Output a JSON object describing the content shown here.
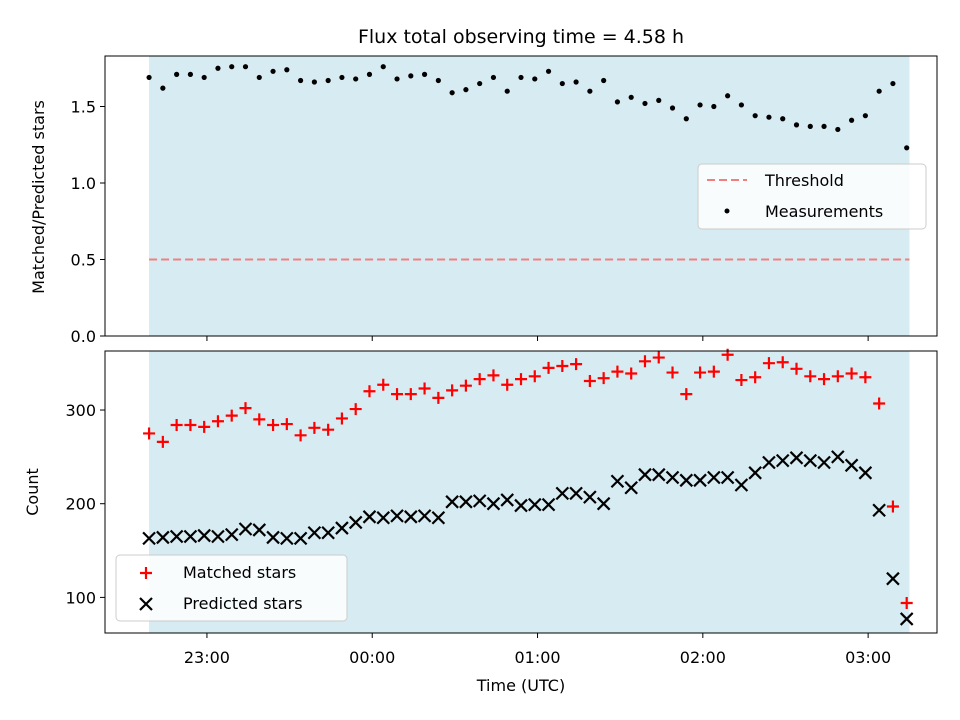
{
  "chart_data": [
    {
      "type": "scatter",
      "title": "Flux total observing time = 4.58 h",
      "xlabel": "",
      "ylabel": "Matched/Predicted stars",
      "ylim": [
        0,
        1.83
      ],
      "yticks": [
        "0.0",
        "0.5",
        "1.0",
        "1.5"
      ],
      "shaded_interval": [
        "22:39",
        "03:15"
      ],
      "threshold": 0.5,
      "legend": {
        "position": "center-right",
        "entries": [
          "Threshold",
          "Measurements"
        ]
      },
      "colors": {
        "threshold": "#f08080",
        "points": "#000000",
        "shade": "#add8e6"
      },
      "series": [
        {
          "name": "Measurements",
          "x": [
            "22:39",
            "22:44",
            "22:49",
            "22:54",
            "22:59",
            "23:04",
            "23:09",
            "23:14",
            "23:19",
            "23:24",
            "23:29",
            "23:34",
            "23:39",
            "23:44",
            "23:49",
            "23:54",
            "23:59",
            "00:04",
            "00:09",
            "00:14",
            "00:19",
            "00:24",
            "00:29",
            "00:34",
            "00:39",
            "00:44",
            "00:49",
            "00:54",
            "00:59",
            "01:04",
            "01:09",
            "01:14",
            "01:19",
            "01:24",
            "01:29",
            "01:34",
            "01:39",
            "01:44",
            "01:49",
            "01:54",
            "01:59",
            "02:04",
            "02:09",
            "02:14",
            "02:19",
            "02:24",
            "02:29",
            "02:34",
            "02:39",
            "02:44",
            "02:49",
            "02:54",
            "02:59",
            "03:04",
            "03:09",
            "03:14"
          ],
          "y": [
            1.69,
            1.62,
            1.71,
            1.71,
            1.69,
            1.75,
            1.76,
            1.76,
            1.69,
            1.73,
            1.74,
            1.67,
            1.66,
            1.67,
            1.69,
            1.68,
            1.71,
            1.76,
            1.68,
            1.7,
            1.71,
            1.67,
            1.59,
            1.61,
            1.65,
            1.69,
            1.6,
            1.69,
            1.68,
            1.73,
            1.65,
            1.66,
            1.6,
            1.67,
            1.53,
            1.56,
            1.52,
            1.54,
            1.49,
            1.42,
            1.51,
            1.5,
            1.57,
            1.51,
            1.44,
            1.43,
            1.42,
            1.38,
            1.37,
            1.37,
            1.35,
            1.41,
            1.44,
            1.6,
            1.65,
            1.23
          ]
        }
      ]
    },
    {
      "type": "scatter",
      "xlabel": "Time (UTC)",
      "ylabel": "Count",
      "ylim": [
        62,
        363
      ],
      "yticks": [
        "100",
        "200",
        "300"
      ],
      "xticks": [
        "23:00",
        "00:00",
        "01:00",
        "02:00",
        "03:00"
      ],
      "legend": {
        "position": "bottom-left",
        "entries": [
          "Matched stars",
          "Predicted stars"
        ]
      },
      "colors": {
        "matched": "#ff0000",
        "predicted": "#000000"
      },
      "series": [
        {
          "name": "Matched stars",
          "x": [
            "22:39",
            "22:44",
            "22:49",
            "22:54",
            "22:59",
            "23:04",
            "23:09",
            "23:14",
            "23:19",
            "23:24",
            "23:29",
            "23:34",
            "23:39",
            "23:44",
            "23:49",
            "23:54",
            "23:59",
            "00:04",
            "00:09",
            "00:14",
            "00:19",
            "00:24",
            "00:29",
            "00:34",
            "00:39",
            "00:44",
            "00:49",
            "00:54",
            "00:59",
            "01:04",
            "01:09",
            "01:14",
            "01:19",
            "01:24",
            "01:29",
            "01:34",
            "01:39",
            "01:44",
            "01:49",
            "01:54",
            "01:59",
            "02:04",
            "02:09",
            "02:14",
            "02:19",
            "02:24",
            "02:29",
            "02:34",
            "02:39",
            "02:44",
            "02:49",
            "02:54",
            "02:59",
            "03:04",
            "03:09",
            "03:14"
          ],
          "y": [
            275,
            266,
            284,
            284,
            282,
            288,
            294,
            302,
            290,
            284,
            285,
            273,
            281,
            279,
            291,
            301,
            320,
            327,
            317,
            317,
            323,
            313,
            321,
            326,
            333,
            337,
            327,
            333,
            336,
            345,
            347,
            349,
            331,
            334,
            341,
            339,
            352,
            356,
            340,
            317,
            340,
            341,
            359,
            332,
            335,
            350,
            351,
            344,
            336,
            333,
            336,
            339,
            335,
            307,
            197,
            94
          ]
        },
        {
          "name": "Predicted stars",
          "x": [
            "22:39",
            "22:44",
            "22:49",
            "22:54",
            "22:59",
            "23:04",
            "23:09",
            "23:14",
            "23:19",
            "23:24",
            "23:29",
            "23:34",
            "23:39",
            "23:44",
            "23:49",
            "23:54",
            "23:59",
            "00:04",
            "00:09",
            "00:14",
            "00:19",
            "00:24",
            "00:29",
            "00:34",
            "00:39",
            "00:44",
            "00:49",
            "00:54",
            "00:59",
            "01:04",
            "01:09",
            "01:14",
            "01:19",
            "01:24",
            "01:29",
            "01:34",
            "01:39",
            "01:44",
            "01:49",
            "01:54",
            "01:59",
            "02:04",
            "02:09",
            "02:14",
            "02:19",
            "02:24",
            "02:29",
            "02:34",
            "02:39",
            "02:44",
            "02:49",
            "02:54",
            "02:59",
            "03:04",
            "03:09",
            "03:14"
          ],
          "y": [
            163,
            164,
            165,
            165,
            166,
            165,
            167,
            173,
            172,
            164,
            163,
            163,
            169,
            169,
            174,
            180,
            186,
            185,
            187,
            186,
            187,
            185,
            202,
            202,
            203,
            200,
            204,
            198,
            199,
            199,
            211,
            211,
            207,
            200,
            224,
            217,
            231,
            231,
            228,
            225,
            225,
            228,
            228,
            220,
            233,
            244,
            246,
            249,
            246,
            244,
            250,
            241,
            233,
            193,
            120,
            77
          ]
        }
      ]
    }
  ]
}
